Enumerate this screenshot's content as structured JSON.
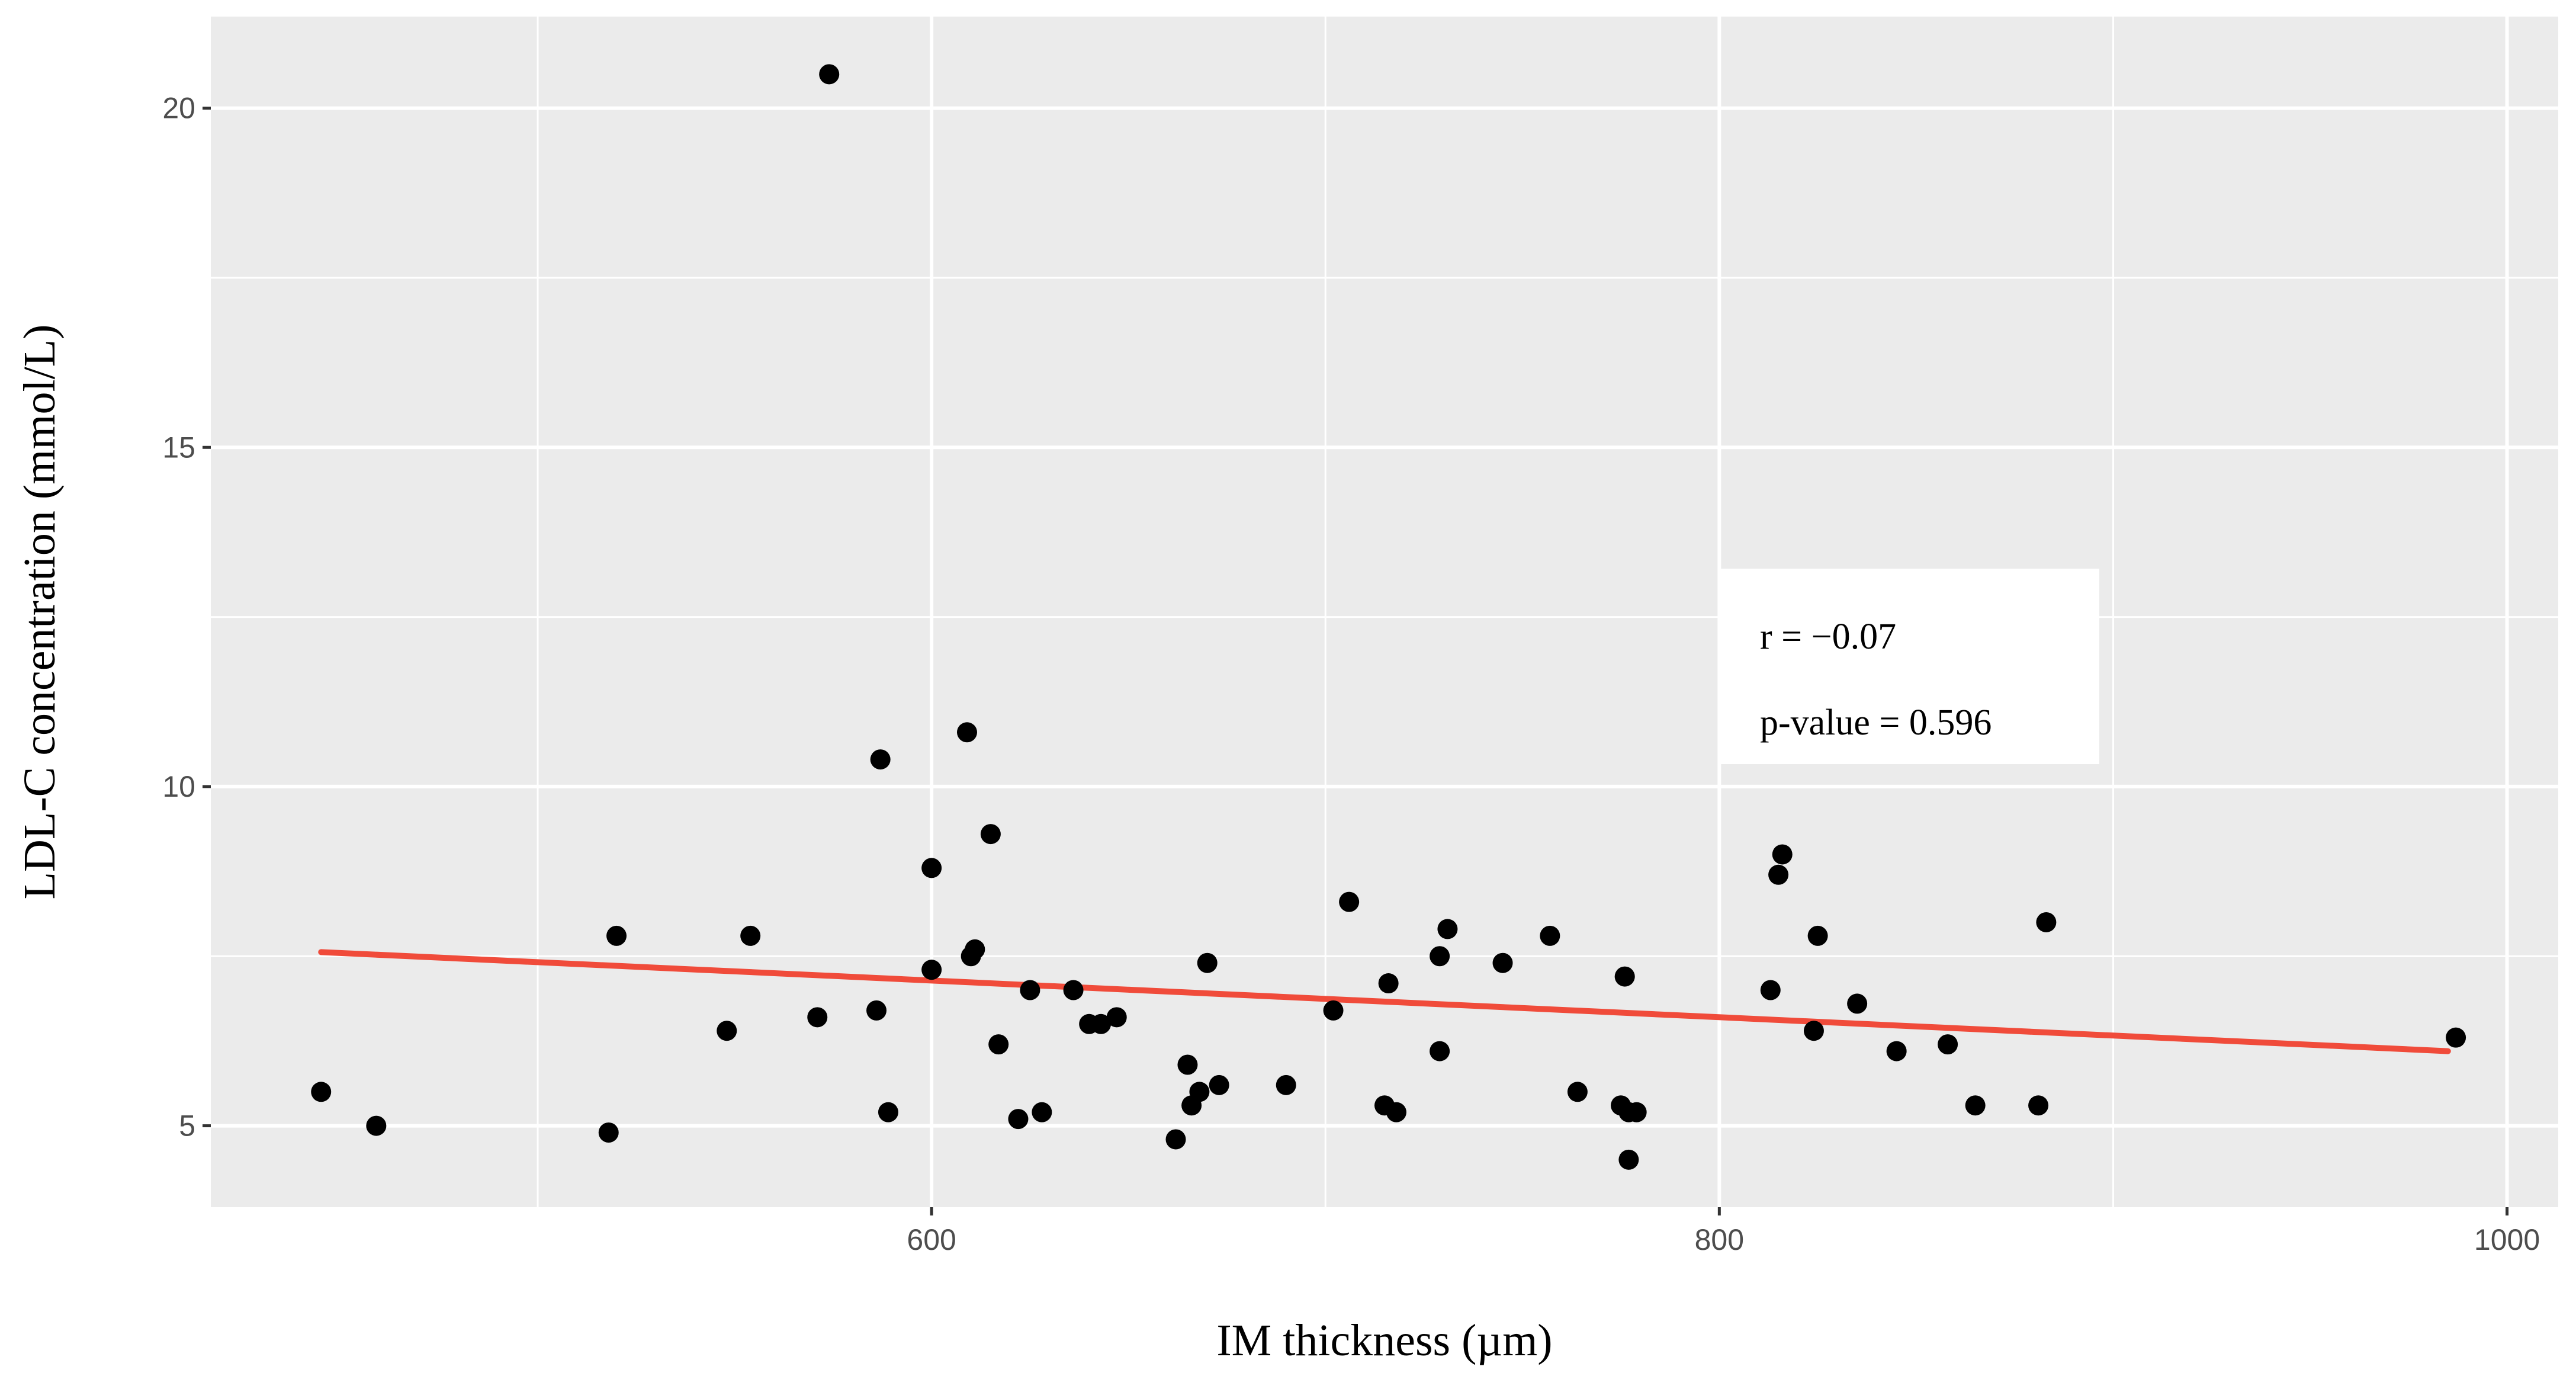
{
  "chart_data": {
    "type": "scatter",
    "title": "",
    "xlabel": "IM thickness (µm)",
    "ylabel": "LDL-C concentration (mmol/L)",
    "xlim": [
      417,
      1013
    ],
    "ylim": [
      3.8,
      21.35
    ],
    "xticks": [
      600,
      800,
      1000
    ],
    "xtick_labels": [
      "600",
      "800",
      "1000"
    ],
    "x_minor_grid": [
      500,
      700,
      900
    ],
    "yticks": [
      5,
      10,
      15,
      20
    ],
    "ytick_labels": [
      "5",
      "10",
      "15",
      "20"
    ],
    "y_minor_grid": [
      7.5,
      12.5,
      17.5
    ],
    "grid": true,
    "background": "#ebebeb",
    "point_color": "#000000",
    "trend_color": "#f04b3a",
    "points": [
      [
        445,
        5.5
      ],
      [
        459,
        5.0
      ],
      [
        518,
        4.9
      ],
      [
        520,
        7.8
      ],
      [
        548,
        6.4
      ],
      [
        554,
        7.8
      ],
      [
        571,
        6.6
      ],
      [
        574,
        20.5
      ],
      [
        586,
        6.7
      ],
      [
        587,
        10.4
      ],
      [
        589,
        5.2
      ],
      [
        600,
        8.8
      ],
      [
        600,
        7.3
      ],
      [
        609,
        10.8
      ],
      [
        610,
        7.5
      ],
      [
        611,
        7.6
      ],
      [
        615,
        9.3
      ],
      [
        617,
        6.2
      ],
      [
        622,
        5.1
      ],
      [
        625,
        7.0
      ],
      [
        628,
        5.2
      ],
      [
        636,
        7.0
      ],
      [
        640,
        6.5
      ],
      [
        643,
        6.5
      ],
      [
        647,
        6.6
      ],
      [
        662,
        4.8
      ],
      [
        665,
        5.9
      ],
      [
        666,
        5.3
      ],
      [
        668,
        5.5
      ],
      [
        670,
        7.4
      ],
      [
        673,
        5.6
      ],
      [
        690,
        5.6
      ],
      [
        702,
        6.7
      ],
      [
        706,
        8.3
      ],
      [
        715,
        5.3
      ],
      [
        716,
        7.1
      ],
      [
        718,
        5.2
      ],
      [
        729,
        6.1
      ],
      [
        729,
        7.5
      ],
      [
        731,
        7.9
      ],
      [
        745,
        7.4
      ],
      [
        757,
        7.8
      ],
      [
        764,
        5.5
      ],
      [
        775,
        5.3
      ],
      [
        776,
        7.2
      ],
      [
        777,
        4.5
      ],
      [
        777,
        5.2
      ],
      [
        779,
        5.2
      ],
      [
        813,
        7.0
      ],
      [
        815,
        8.7
      ],
      [
        816,
        9.0
      ],
      [
        824,
        6.4
      ],
      [
        825,
        7.8
      ],
      [
        835,
        6.8
      ],
      [
        845,
        6.1
      ],
      [
        858,
        6.2
      ],
      [
        865,
        5.3
      ],
      [
        881,
        5.3
      ],
      [
        883,
        8.0
      ],
      [
        987,
        6.3
      ]
    ],
    "trendline": {
      "x": [
        445,
        985
      ],
      "y": [
        7.56,
        6.1
      ]
    },
    "annotations": [
      "r = −0.07",
      "p-value = 0.596"
    ]
  }
}
